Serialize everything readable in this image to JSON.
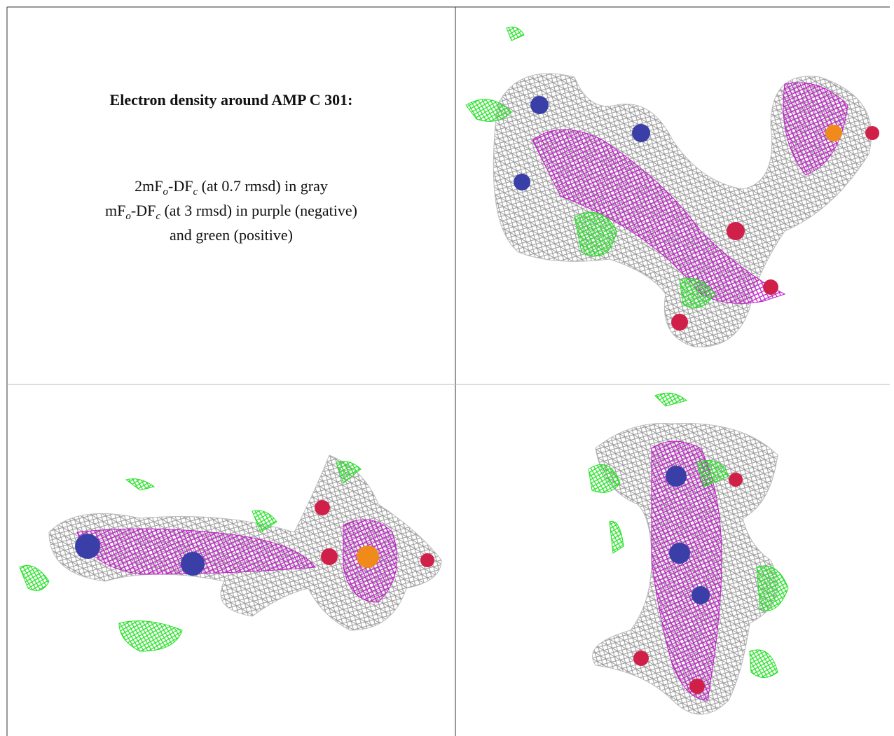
{
  "title": "Electron density around AMP C 301:",
  "legend_lines": [
    [
      "2mF",
      "o",
      "-DF",
      "c",
      " (at 0.7 rmsd) in gray"
    ],
    [
      "mF",
      "o",
      "-DF",
      "c",
      " (at 3 rmsd) in purple (negative)"
    ],
    [
      "and green (positive)"
    ]
  ]
}
